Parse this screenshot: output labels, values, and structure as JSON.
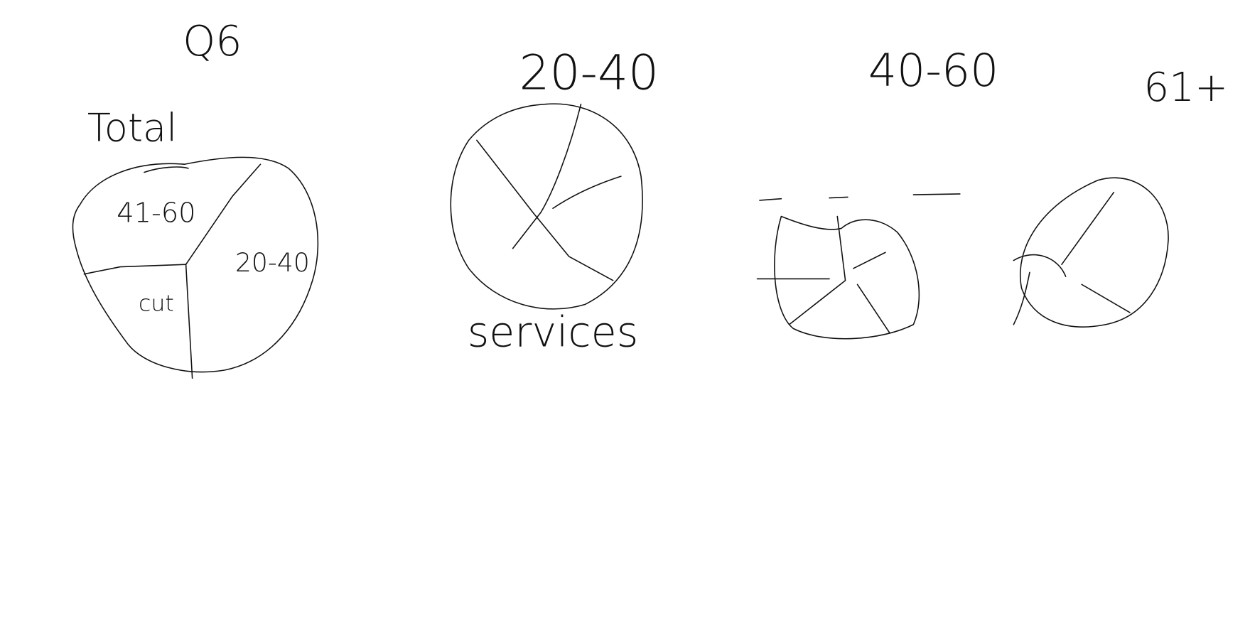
{
  "title": "Q6",
  "panels": [
    {
      "title": "Total",
      "slices": [
        "41-60",
        "20-40",
        "cut"
      ]
    },
    {
      "title": "20-40",
      "caption": "services"
    },
    {
      "title": "40-60"
    },
    {
      "title": "61+"
    }
  ]
}
